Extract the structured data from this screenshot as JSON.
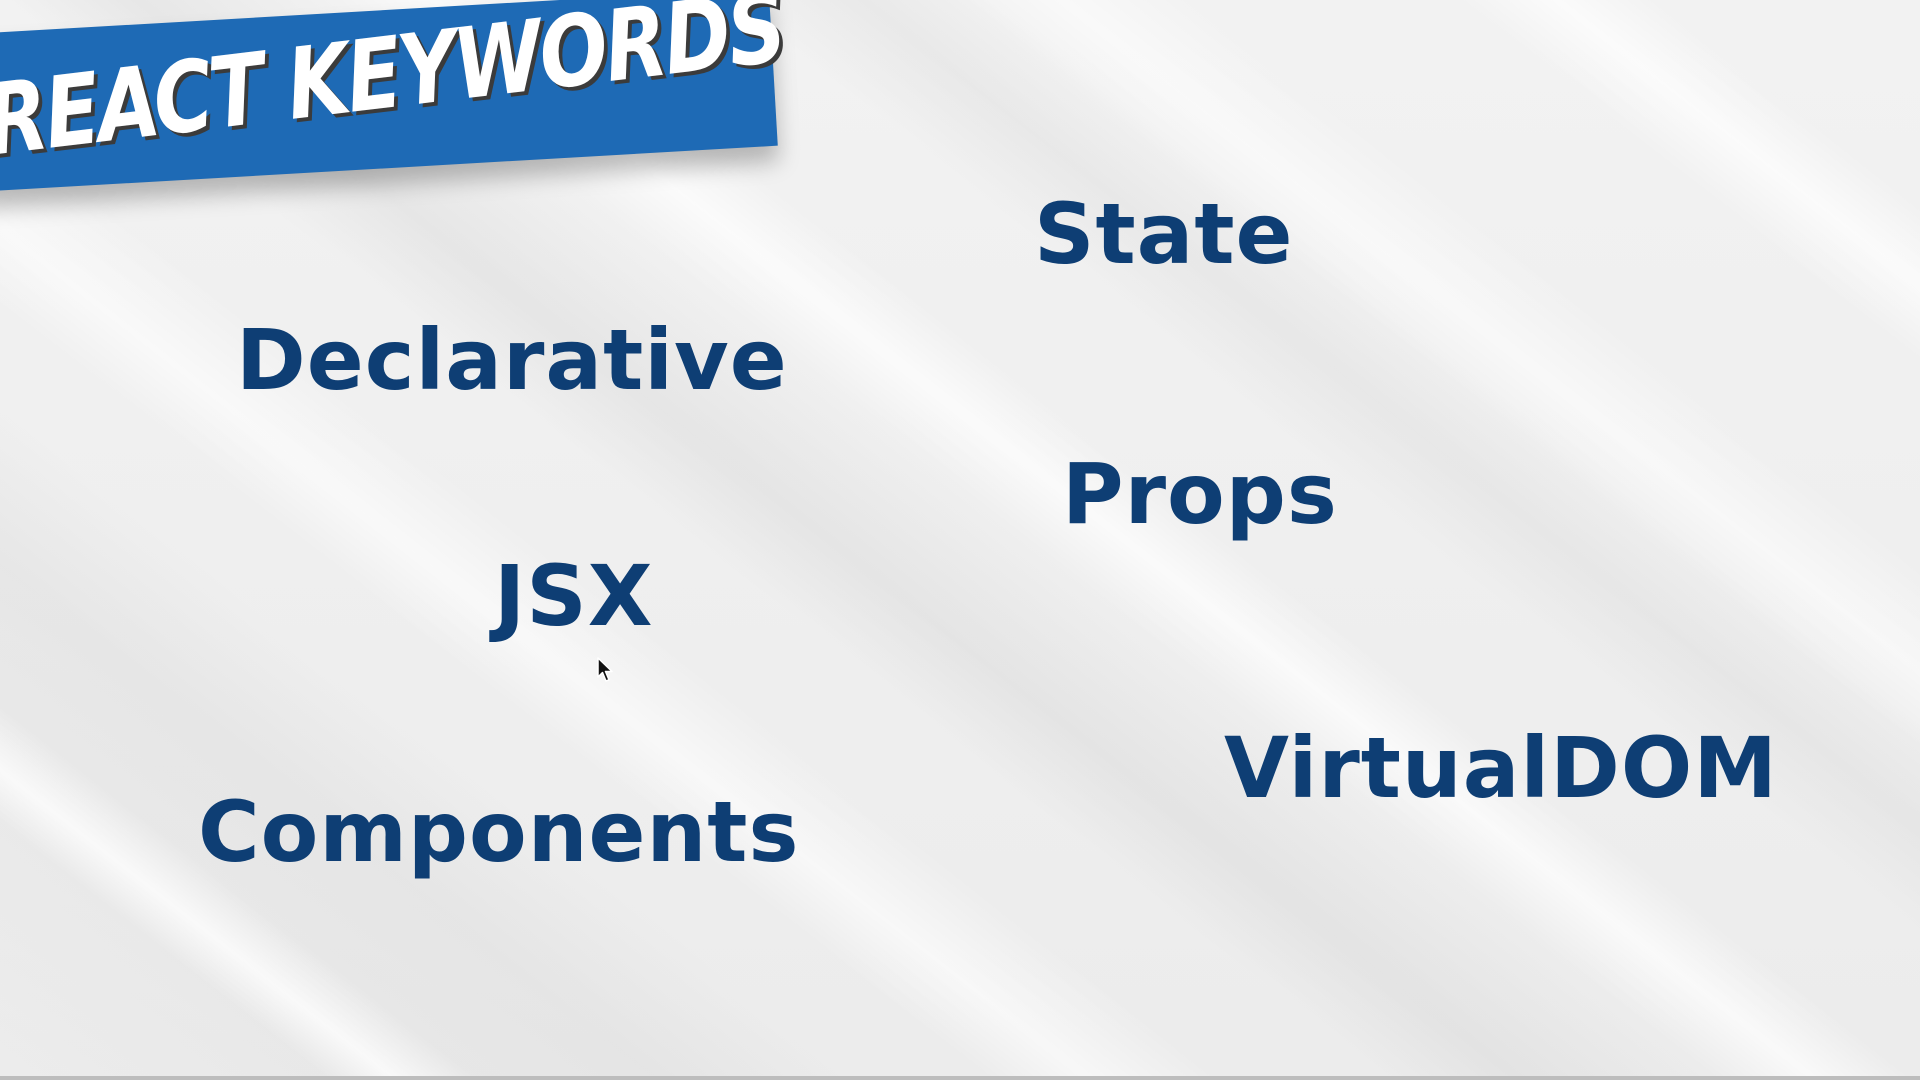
{
  "slide": {
    "title": "REACT KEYWORDS",
    "keywords": {
      "state": "State",
      "declarative": "Declarative",
      "props": "Props",
      "jsx": "JSX",
      "virtualdom": "VirtualDOM",
      "components": "Components"
    }
  },
  "colors": {
    "banner": "#1e6ab5",
    "keyword_text": "#0e3e74",
    "background": "#eeeeee"
  },
  "icons": {
    "cursor": "mouse-pointer-icon"
  }
}
